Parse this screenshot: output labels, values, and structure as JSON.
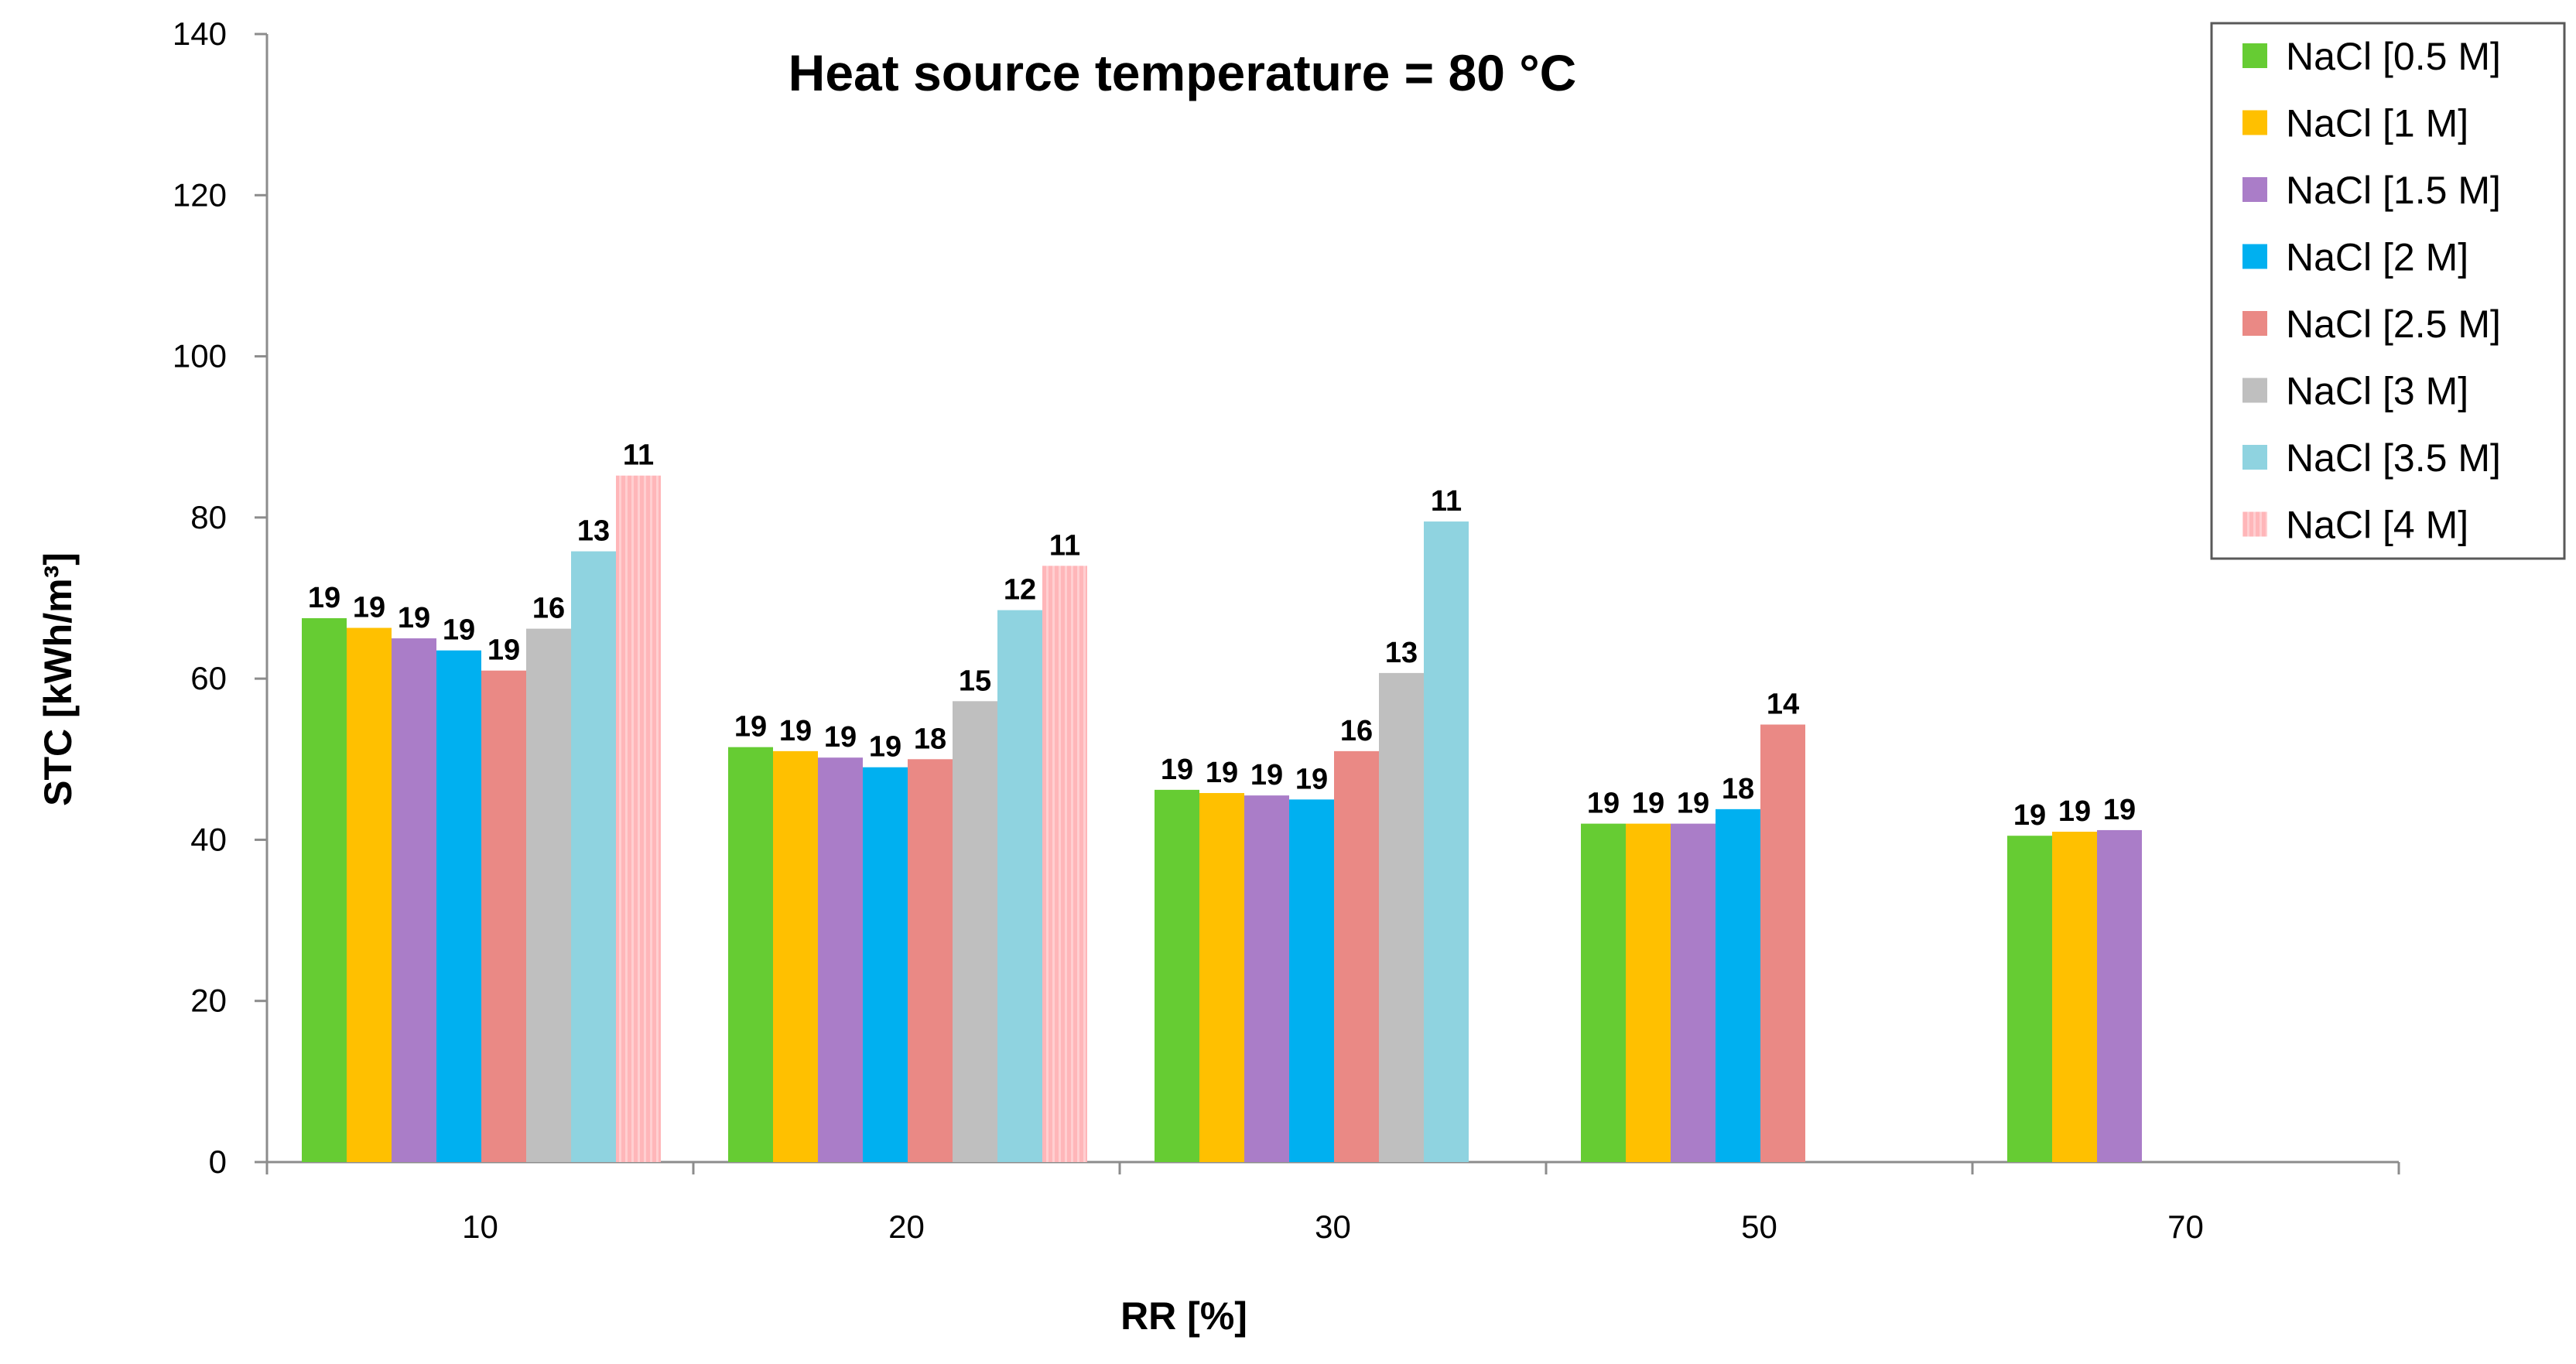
{
  "chart_data": {
    "type": "bar",
    "title": "Heat source temperature = 80 °C",
    "xlabel": "RR [%]",
    "ylabel": "STC [kWh/m³]",
    "ylim": [
      0,
      140
    ],
    "yticks": [
      0,
      20,
      40,
      60,
      80,
      100,
      120,
      140
    ],
    "categories": [
      "10",
      "20",
      "30",
      "50",
      "70"
    ],
    "legend_position": "top-right",
    "series": [
      {
        "name": "NaCl [0.5 M]",
        "color": "#66cc33",
        "values": [
          67.5,
          51.5,
          46.2,
          42.0,
          40.5
        ],
        "labels": [
          "19",
          "19",
          "19",
          "19",
          "19"
        ]
      },
      {
        "name": "NaCl [1 M]",
        "color": "#ffc000",
        "values": [
          66.3,
          51.0,
          45.8,
          42.0,
          41.0
        ],
        "labels": [
          "19",
          "19",
          "19",
          "19",
          "19"
        ]
      },
      {
        "name": "NaCl [1.5 M]",
        "color": "#aa7dc8",
        "values": [
          65.0,
          50.2,
          45.5,
          42.0,
          41.2
        ],
        "labels": [
          "19",
          "19",
          "19",
          "19",
          "19"
        ]
      },
      {
        "name": "NaCl [2 M]",
        "color": "#00b0f0",
        "values": [
          63.5,
          49.0,
          45.0,
          43.8,
          null
        ],
        "labels": [
          "19",
          "19",
          "19",
          "18",
          ""
        ]
      },
      {
        "name": "NaCl [2.5 M]",
        "color": "#ea8985",
        "values": [
          61.0,
          50.0,
          51.0,
          54.3,
          null
        ],
        "labels": [
          "19",
          "18",
          "16",
          "14",
          ""
        ]
      },
      {
        "name": "NaCl [3 M]",
        "color": "#bfbfbf",
        "values": [
          66.2,
          57.2,
          60.7,
          null,
          null
        ],
        "labels": [
          "16",
          "15",
          "13",
          "",
          ""
        ]
      },
      {
        "name": "NaCl [3.5 M]",
        "color": "#8fd3e0",
        "values": [
          75.8,
          68.5,
          79.5,
          null,
          null
        ],
        "labels": [
          "13",
          "12",
          "11",
          "",
          ""
        ]
      },
      {
        "name": "NaCl [4 M]",
        "color": "#ffb6b9",
        "values": [
          85.2,
          74.0,
          null,
          null,
          null
        ],
        "labels": [
          "11",
          "11",
          "",
          "",
          ""
        ]
      }
    ]
  }
}
